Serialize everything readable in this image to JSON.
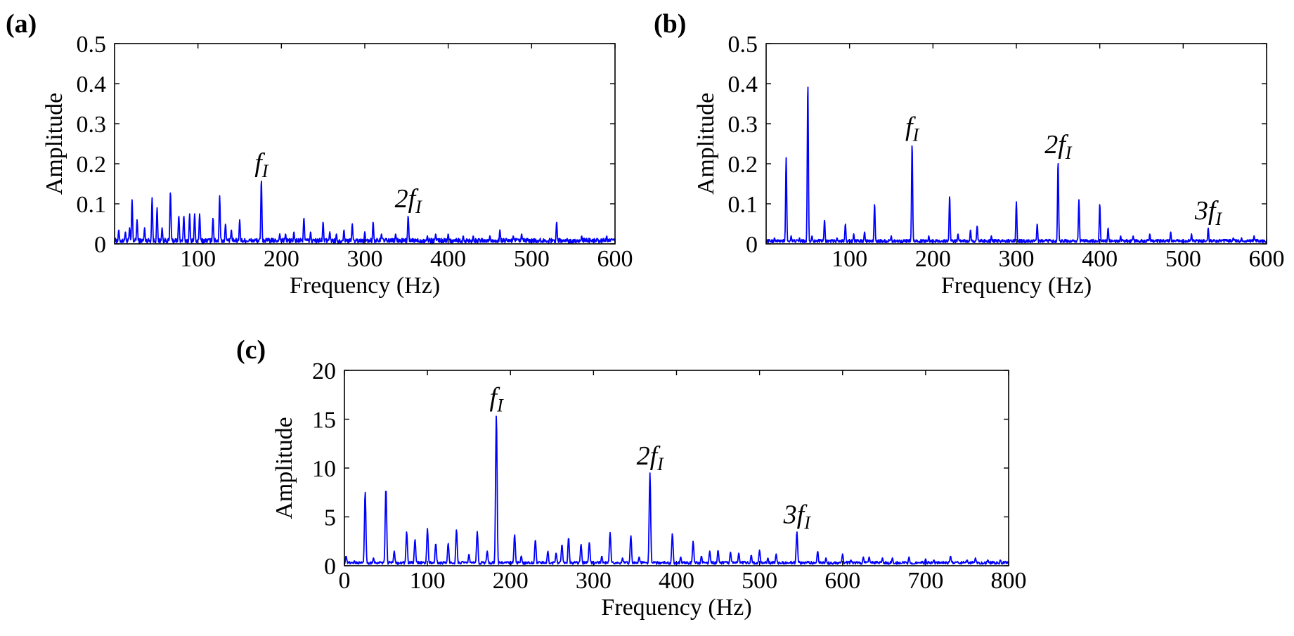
{
  "chart_data": [
    {
      "panel": "(a)",
      "type": "line",
      "xlabel": "Frequency (Hz)",
      "ylabel": "Amplitude",
      "xlim": [
        0,
        600
      ],
      "ylim": [
        0,
        0.5
      ],
      "xticks": [
        100,
        200,
        300,
        400,
        500,
        600
      ],
      "yticks": [
        0,
        0.1,
        0.2,
        0.3,
        0.4,
        0.5
      ],
      "xtick_labels": [
        "100",
        "200",
        "300",
        "400",
        "500",
        "600"
      ],
      "ytick_labels": [
        "0",
        "0.1",
        "0.2",
        "0.3",
        "0.4",
        "0.5"
      ],
      "baseline": 0.008,
      "noise": 0.006,
      "peaks": [
        [
          5,
          0.035
        ],
        [
          13,
          0.03
        ],
        [
          18,
          0.04
        ],
        [
          21,
          0.11
        ],
        [
          27,
          0.06
        ],
        [
          36,
          0.04
        ],
        [
          45,
          0.115
        ],
        [
          51,
          0.09
        ],
        [
          57,
          0.04
        ],
        [
          67,
          0.13
        ],
        [
          77,
          0.07
        ],
        [
          83,
          0.07
        ],
        [
          90,
          0.075
        ],
        [
          96,
          0.075
        ],
        [
          102,
          0.075
        ],
        [
          118,
          0.065
        ],
        [
          126,
          0.12
        ],
        [
          133,
          0.05
        ],
        [
          140,
          0.035
        ],
        [
          150,
          0.06
        ],
        [
          176,
          0.16
        ],
        [
          198,
          0.025
        ],
        [
          205,
          0.025
        ],
        [
          215,
          0.03
        ],
        [
          227,
          0.065
        ],
        [
          235,
          0.03
        ],
        [
          250,
          0.055
        ],
        [
          258,
          0.03
        ],
        [
          266,
          0.025
        ],
        [
          275,
          0.035
        ],
        [
          285,
          0.05
        ],
        [
          300,
          0.03
        ],
        [
          310,
          0.055
        ],
        [
          320,
          0.025
        ],
        [
          337,
          0.025
        ],
        [
          352,
          0.07
        ],
        [
          375,
          0.02
        ],
        [
          385,
          0.025
        ],
        [
          400,
          0.025
        ],
        [
          418,
          0.02
        ],
        [
          430,
          0.02
        ],
        [
          450,
          0.02
        ],
        [
          462,
          0.035
        ],
        [
          478,
          0.02
        ],
        [
          488,
          0.025
        ],
        [
          530,
          0.055
        ],
        [
          560,
          0.02
        ],
        [
          590,
          0.02
        ]
      ],
      "annotations": [
        {
          "base": "f",
          "sub": "I",
          "x": 176,
          "y": 0.16
        },
        {
          "base": "2f",
          "sub": "I",
          "x": 352,
          "y": 0.07
        }
      ]
    },
    {
      "panel": "(b)",
      "type": "line",
      "xlabel": "Frequency (Hz)",
      "ylabel": "Amplitude",
      "xlim": [
        0,
        600
      ],
      "ylim": [
        0,
        0.5
      ],
      "xticks": [
        100,
        200,
        300,
        400,
        500,
        600
      ],
      "yticks": [
        0,
        0.1,
        0.2,
        0.3,
        0.4,
        0.5
      ],
      "xtick_labels": [
        "100",
        "200",
        "300",
        "400",
        "500",
        "600"
      ],
      "ytick_labels": [
        "0",
        "0.1",
        "0.2",
        "0.3",
        "0.4",
        "0.5"
      ],
      "baseline": 0.007,
      "noise": 0.004,
      "peaks": [
        [
          10,
          0.015
        ],
        [
          24,
          0.215
        ],
        [
          30,
          0.02
        ],
        [
          40,
          0.015
        ],
        [
          50,
          0.4
        ],
        [
          55,
          0.02
        ],
        [
          70,
          0.06
        ],
        [
          85,
          0.015
        ],
        [
          95,
          0.05
        ],
        [
          105,
          0.025
        ],
        [
          118,
          0.03
        ],
        [
          130,
          0.1
        ],
        [
          150,
          0.02
        ],
        [
          175,
          0.25
        ],
        [
          195,
          0.02
        ],
        [
          220,
          0.12
        ],
        [
          230,
          0.025
        ],
        [
          245,
          0.035
        ],
        [
          253,
          0.045
        ],
        [
          270,
          0.02
        ],
        [
          300,
          0.105
        ],
        [
          325,
          0.05
        ],
        [
          350,
          0.205
        ],
        [
          375,
          0.11
        ],
        [
          400,
          0.1
        ],
        [
          410,
          0.04
        ],
        [
          425,
          0.02
        ],
        [
          440,
          0.02
        ],
        [
          460,
          0.025
        ],
        [
          485,
          0.03
        ],
        [
          510,
          0.025
        ],
        [
          530,
          0.04
        ],
        [
          560,
          0.015
        ],
        [
          570,
          0.015
        ],
        [
          585,
          0.02
        ]
      ],
      "annotations": [
        {
          "base": "f",
          "sub": "I",
          "x": 175,
          "y": 0.25
        },
        {
          "base": "2f",
          "sub": "I",
          "x": 350,
          "y": 0.205
        },
        {
          "base": "3f",
          "sub": "I",
          "x": 530,
          "y": 0.04
        }
      ]
    },
    {
      "panel": "(c)",
      "type": "line",
      "xlabel": "Frequency (Hz)",
      "ylabel": "Amplitude",
      "xlim": [
        0,
        800
      ],
      "ylim": [
        0,
        20
      ],
      "xticks": [
        0,
        100,
        200,
        300,
        400,
        500,
        600,
        700,
        800
      ],
      "yticks": [
        0,
        5,
        10,
        15,
        20
      ],
      "xtick_labels": [
        "0",
        "100",
        "200",
        "300",
        "400",
        "500",
        "600",
        "700",
        "800"
      ],
      "ytick_labels": [
        "0",
        "5",
        "10",
        "15",
        "20"
      ],
      "baseline": 0.3,
      "noise": 0.15,
      "peaks": [
        [
          2,
          1.0
        ],
        [
          12,
          0.5
        ],
        [
          25,
          7.6
        ],
        [
          35,
          0.8
        ],
        [
          50,
          8.0
        ],
        [
          60,
          1.5
        ],
        [
          75,
          3.5
        ],
        [
          85,
          2.7
        ],
        [
          100,
          3.8
        ],
        [
          110,
          2.3
        ],
        [
          125,
          2.3
        ],
        [
          135,
          3.7
        ],
        [
          150,
          1.2
        ],
        [
          160,
          3.5
        ],
        [
          172,
          1.5
        ],
        [
          183,
          15.5
        ],
        [
          205,
          3.2
        ],
        [
          213,
          1.0
        ],
        [
          230,
          2.7
        ],
        [
          245,
          1.5
        ],
        [
          255,
          1.3
        ],
        [
          262,
          2.2
        ],
        [
          270,
          2.9
        ],
        [
          285,
          2.2
        ],
        [
          295,
          2.4
        ],
        [
          310,
          1.0
        ],
        [
          320,
          3.4
        ],
        [
          335,
          0.8
        ],
        [
          345,
          3.1
        ],
        [
          355,
          0.9
        ],
        [
          368,
          9.5
        ],
        [
          395,
          3.3
        ],
        [
          405,
          0.9
        ],
        [
          420,
          2.5
        ],
        [
          430,
          1.0
        ],
        [
          440,
          1.5
        ],
        [
          450,
          1.6
        ],
        [
          465,
          1.4
        ],
        [
          475,
          1.3
        ],
        [
          490,
          1.1
        ],
        [
          500,
          1.6
        ],
        [
          510,
          0.8
        ],
        [
          520,
          1.2
        ],
        [
          545,
          3.5
        ],
        [
          570,
          1.5
        ],
        [
          580,
          0.8
        ],
        [
          600,
          1.2
        ],
        [
          610,
          0.6
        ],
        [
          625,
          0.9
        ],
        [
          632,
          0.9
        ],
        [
          648,
          0.8
        ],
        [
          660,
          0.8
        ],
        [
          680,
          0.9
        ],
        [
          700,
          0.7
        ],
        [
          710,
          0.6
        ],
        [
          730,
          1.0
        ],
        [
          750,
          0.6
        ],
        [
          760,
          0.8
        ],
        [
          775,
          0.6
        ],
        [
          790,
          0.6
        ]
      ],
      "annotations": [
        {
          "base": "f",
          "sub": "I",
          "x": 183,
          "y": 15.5
        },
        {
          "base": "2f",
          "sub": "I",
          "x": 368,
          "y": 9.5
        },
        {
          "base": "3f",
          "sub": "I",
          "x": 545,
          "y": 3.5
        }
      ]
    }
  ]
}
